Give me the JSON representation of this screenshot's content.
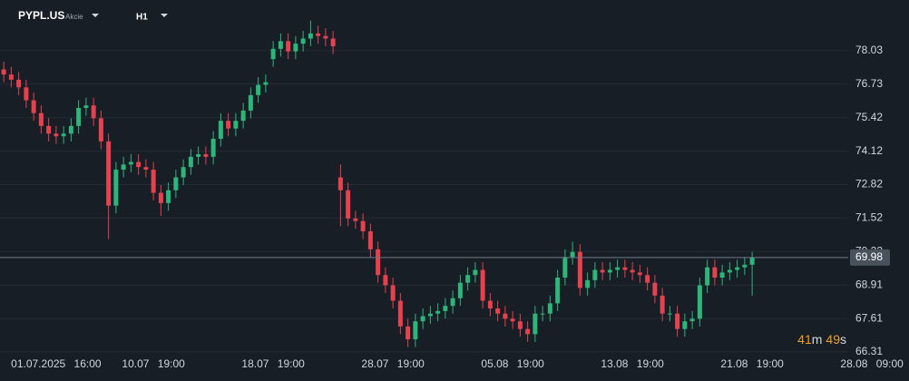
{
  "header": {
    "symbol": "PYPL.US",
    "kind": "Akcie",
    "timeframe": "H1"
  },
  "timer": [
    "41",
    "m",
    "49",
    "s"
  ],
  "chart_data": {
    "type": "candlestick",
    "up_color": "#2db67a",
    "down_color": "#e5414f",
    "grid": true,
    "ylim": [
      66.06,
      80.0
    ],
    "yticks": [
      78.03,
      76.73,
      75.42,
      74.12,
      72.82,
      71.52,
      70.22,
      68.91,
      67.61,
      66.31
    ],
    "last_price": 69.98,
    "categories": [
      null,
      null,
      null,
      null,
      null,
      null,
      null,
      "01.07.2025 16:00",
      null,
      null,
      null,
      null,
      null,
      null,
      null,
      null,
      null,
      null,
      null,
      null,
      "10.07 19:00",
      null,
      null,
      null,
      null,
      null,
      null,
      null,
      null,
      null,
      null,
      null,
      null,
      null,
      null,
      null,
      "18.07 19:00",
      null,
      null,
      null,
      null,
      null,
      null,
      null,
      null,
      null,
      null,
      null,
      null,
      null,
      null,
      null,
      "28.07 19:00",
      null,
      null,
      null,
      null,
      null,
      null,
      null,
      null,
      null,
      null,
      null,
      null,
      null,
      null,
      null,
      "05.08 19:00",
      null,
      null,
      null,
      null,
      null,
      null,
      null,
      null,
      null,
      null,
      null,
      null,
      null,
      null,
      null,
      "13.08 19:00",
      null,
      null,
      null,
      null,
      null,
      null,
      null,
      null,
      null,
      null,
      null,
      null,
      null,
      null,
      null,
      "21.08 19:00",
      null,
      null,
      null,
      null,
      null,
      null,
      null,
      null,
      null,
      null,
      null,
      null,
      null,
      null,
      null,
      "28.08 09:00"
    ],
    "open": [
      77.3,
      77.1,
      76.9,
      76.6,
      76.1,
      75.6,
      75.1,
      74.8,
      74.7,
      74.8,
      75.1,
      75.8,
      75.9,
      75.4,
      74.5,
      72.0,
      73.4,
      73.6,
      73.7,
      73.5,
      73.4,
      72.5,
      72.1,
      72.6,
      73.1,
      73.5,
      73.9,
      74.0,
      73.9,
      74.6,
      75.3,
      75.0,
      75.3,
      75.7,
      76.3,
      76.7,
      77.7,
      78.1,
      78.4,
      78.0,
      78.3,
      78.5,
      78.7,
      78.6,
      78.5,
      73.1,
      72.6,
      71.5,
      71.4,
      71.0,
      70.3,
      69.3,
      68.9,
      68.3,
      67.3,
      66.8,
      67.5,
      67.7,
      67.8,
      67.9,
      68.1,
      68.4,
      69.0,
      69.3,
      69.5,
      68.3,
      68.0,
      67.8,
      67.6,
      67.5,
      67.2,
      67.0,
      67.8,
      67.8,
      68.2,
      69.2,
      70.0,
      70.2,
      68.8,
      69.1,
      69.5,
      69.4,
      69.5,
      69.6,
      69.5,
      69.4,
      69.3,
      69.0,
      68.5,
      67.8,
      67.8,
      67.2,
      67.5,
      67.6,
      68.9,
      69.6,
      69.2,
      69.4,
      69.5,
      69.6,
      69.7,
      null,
      null,
      null,
      null,
      null,
      null,
      null,
      null,
      null,
      null,
      null,
      null,
      null,
      null,
      null,
      null
    ],
    "high": [
      77.6,
      77.4,
      77.2,
      76.9,
      76.4,
      75.9,
      75.4,
      75.1,
      75.1,
      75.4,
      76.1,
      76.2,
      76.2,
      75.7,
      74.8,
      73.7,
      73.9,
      74.0,
      74.0,
      73.8,
      73.7,
      72.8,
      72.9,
      73.4,
      73.8,
      74.2,
      74.3,
      74.3,
      74.9,
      75.6,
      75.6,
      75.6,
      76.0,
      76.6,
      77.0,
      77.1,
      78.4,
      78.7,
      78.7,
      78.6,
      78.8,
      79.2,
      79.0,
      78.9,
      78.8,
      73.6,
      72.9,
      71.8,
      71.7,
      71.3,
      70.6,
      69.6,
      69.2,
      68.6,
      67.6,
      67.8,
      68.0,
      68.1,
      68.2,
      68.4,
      68.7,
      69.3,
      69.6,
      69.8,
      69.8,
      68.6,
      68.3,
      68.1,
      67.9,
      67.8,
      67.5,
      68.1,
      68.1,
      68.5,
      69.5,
      70.3,
      70.6,
      70.5,
      69.4,
      69.8,
      69.8,
      69.8,
      69.9,
      69.9,
      69.8,
      69.7,
      69.6,
      69.3,
      68.8,
      68.1,
      68.1,
      67.8,
      67.9,
      69.2,
      69.9,
      69.9,
      69.7,
      69.8,
      69.9,
      70.0,
      70.2,
      null,
      null,
      null,
      null,
      null,
      null,
      null,
      null,
      null,
      null,
      null,
      null,
      null,
      null,
      null,
      null
    ],
    "low": [
      76.8,
      76.6,
      76.3,
      75.8,
      75.3,
      74.8,
      74.5,
      74.4,
      74.4,
      74.5,
      74.8,
      75.5,
      75.1,
      74.2,
      70.7,
      71.7,
      73.1,
      73.3,
      73.2,
      73.1,
      72.2,
      71.6,
      71.8,
      72.3,
      72.8,
      73.2,
      73.6,
      73.6,
      73.6,
      74.3,
      74.7,
      74.7,
      75.0,
      75.4,
      76.0,
      76.4,
      77.4,
      77.8,
      77.7,
      77.7,
      78.0,
      78.2,
      78.3,
      78.2,
      77.9,
      71.2,
      71.2,
      71.1,
      70.7,
      70.0,
      69.0,
      68.6,
      68.0,
      67.0,
      66.5,
      66.5,
      67.2,
      67.4,
      67.5,
      67.6,
      67.8,
      68.1,
      68.7,
      69.0,
      68.0,
      67.7,
      67.5,
      67.3,
      67.2,
      66.9,
      66.7,
      66.7,
      67.5,
      67.5,
      67.9,
      68.9,
      69.7,
      68.5,
      68.5,
      68.8,
      69.1,
      69.1,
      69.2,
      69.2,
      69.1,
      69.0,
      68.7,
      68.2,
      67.5,
      67.5,
      66.9,
      66.9,
      67.2,
      67.3,
      68.6,
      68.9,
      68.9,
      69.1,
      69.2,
      69.3,
      68.5,
      null,
      null,
      null,
      null,
      null,
      null,
      null,
      null,
      null,
      null,
      null,
      null,
      null,
      null,
      null,
      null
    ],
    "close": [
      77.1,
      76.9,
      76.6,
      76.1,
      75.6,
      75.1,
      74.8,
      74.7,
      74.8,
      75.1,
      75.8,
      75.9,
      75.4,
      74.5,
      72.0,
      73.4,
      73.6,
      73.7,
      73.5,
      73.4,
      72.5,
      72.1,
      72.6,
      73.1,
      73.5,
      73.9,
      74.0,
      73.9,
      74.6,
      75.3,
      75.0,
      75.3,
      75.7,
      76.3,
      76.7,
      76.8,
      78.1,
      78.4,
      78.0,
      78.3,
      78.5,
      78.7,
      78.6,
      78.5,
      78.2,
      72.6,
      71.5,
      71.4,
      71.0,
      70.3,
      69.3,
      68.9,
      68.3,
      67.3,
      66.8,
      67.5,
      67.7,
      67.8,
      67.9,
      68.1,
      68.4,
      69.0,
      69.3,
      69.5,
      68.3,
      68.0,
      67.8,
      67.6,
      67.5,
      67.2,
      67.0,
      67.8,
      67.8,
      68.2,
      69.2,
      70.0,
      70.2,
      68.8,
      69.1,
      69.5,
      69.4,
      69.5,
      69.6,
      69.5,
      69.4,
      69.3,
      69.0,
      68.5,
      67.8,
      67.8,
      67.2,
      67.5,
      67.6,
      68.9,
      69.6,
      69.2,
      69.4,
      69.5,
      69.6,
      69.7,
      69.98,
      null,
      null,
      null,
      null,
      null,
      null,
      null,
      null,
      null,
      null,
      null,
      null,
      null,
      null,
      null,
      null
    ]
  }
}
